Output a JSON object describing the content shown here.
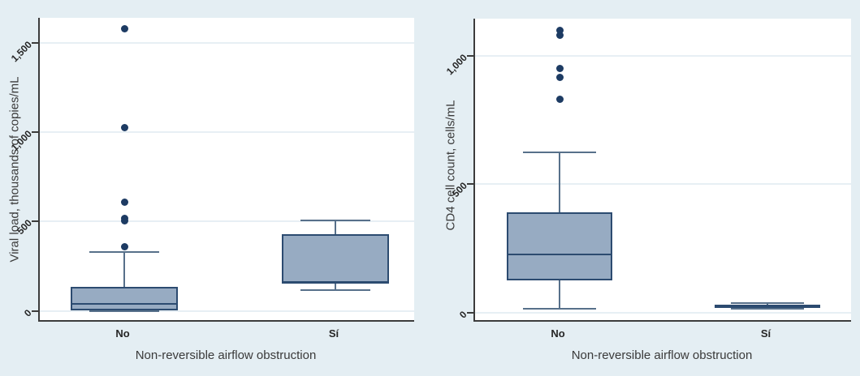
{
  "figure": {
    "background_color": "#e4eef3",
    "plot_background_color": "#ffffff",
    "box_fill_color": "#97abc2",
    "box_border_color": "#2c4b70",
    "whisker_color": "#57708a",
    "outlier_color": "#1d3b63",
    "grid_color": "#e7eff4",
    "axis_color": "#3c3c3c"
  },
  "chart_data": [
    {
      "type": "box",
      "title": "",
      "ylabel": "Viral load, thousands of copies/mL",
      "xlabel": "Non-reversible airflow obstruction",
      "categories": [
        "No",
        "Sí"
      ],
      "grid": true,
      "legend": "none",
      "ylim": [
        -60,
        1640
      ],
      "yticks": [
        {
          "value": 0,
          "label": "0"
        },
        {
          "value": 500,
          "label": "500"
        },
        {
          "value": 1000,
          "label": "1,000"
        },
        {
          "value": 1500,
          "label": "1,500"
        }
      ],
      "series": [
        {
          "category": "No",
          "whisker_low": 0,
          "q1": 5,
          "median": 45,
          "q3": 135,
          "whisker_high": 330,
          "outliers": [
            360,
            505,
            520,
            610,
            1025,
            1580
          ]
        },
        {
          "category": "Sí",
          "whisker_low": 115,
          "q1": 155,
          "median": 165,
          "q3": 430,
          "whisker_high": 505,
          "outliers": []
        }
      ]
    },
    {
      "type": "box",
      "title": "",
      "ylabel": "CD4 cell count, cells/mL",
      "xlabel": "Non-reversible airflow obstruction",
      "categories": [
        "No",
        "Sí"
      ],
      "grid": true,
      "legend": "none",
      "ylim": [
        -35,
        1145
      ],
      "yticks": [
        {
          "value": 0,
          "label": "0"
        },
        {
          "value": 500,
          "label": "500"
        },
        {
          "value": 1000,
          "label": "1,000"
        }
      ],
      "series": [
        {
          "category": "No",
          "whisker_low": 15,
          "q1": 125,
          "median": 230,
          "q3": 390,
          "whisker_high": 625,
          "outliers": [
            830,
            915,
            950,
            1080,
            1100
          ]
        },
        {
          "category": "Sí",
          "whisker_low": 15,
          "q1": 22,
          "median": 27,
          "q3": 32,
          "whisker_high": 36,
          "outliers": []
        }
      ]
    }
  ]
}
